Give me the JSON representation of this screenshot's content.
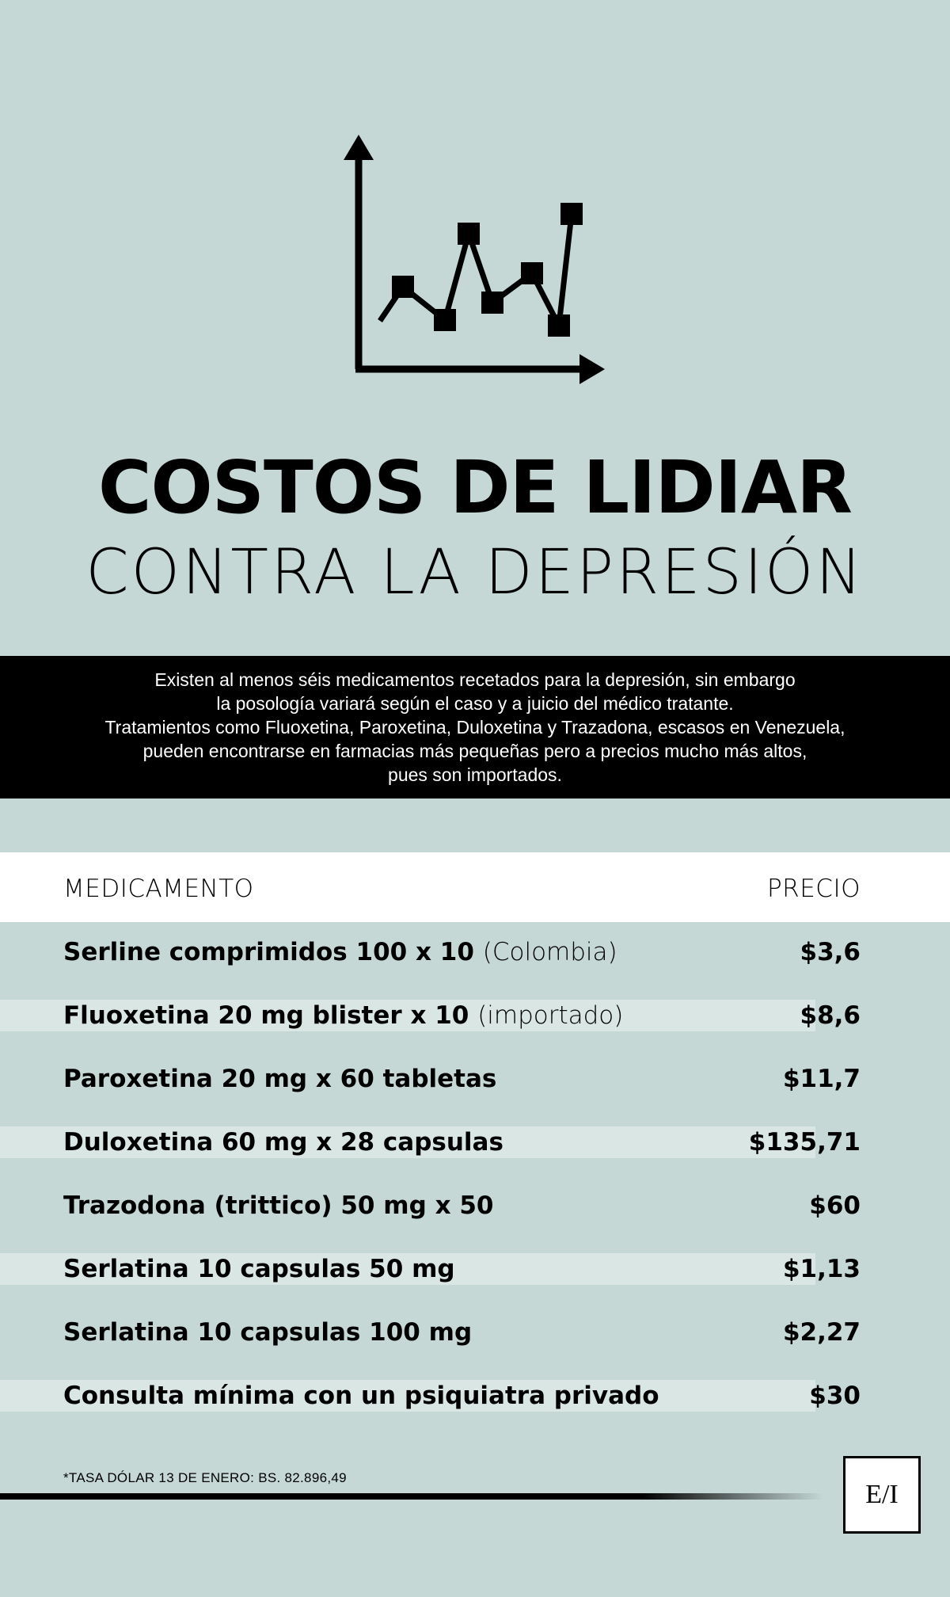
{
  "title": {
    "main": "COSTOS DE LIDIAR",
    "sub": "CONTRA LA DEPRESIÓN"
  },
  "intro": {
    "lines": [
      "Existen al menos séis medicamentos recetados para la depresión, sin embargo",
      "la posología variará según el caso y a juicio del médico tratante.",
      "Tratamientos como Fluoxetina, Paroxetina, Duloxetina y Trazadona, escasos en Venezuela,",
      "pueden encontrarse en farmacias más pequeñas pero a precios mucho más altos,",
      "pues son importados."
    ]
  },
  "table": {
    "header": {
      "name": "MEDICAMENTO",
      "price": "PRECIO"
    },
    "rows": [
      {
        "name": "Serline comprimidos 100 x 10",
        "note": "(Colombia)",
        "price": "$3,6"
      },
      {
        "name": "Fluoxetina 20 mg blister x 10",
        "note": "(importado)",
        "price": "$8,6"
      },
      {
        "name": "Paroxetina 20 mg x 60 tabletas",
        "note": "",
        "price": "$11,7"
      },
      {
        "name": "Duloxetina 60 mg x 28 capsulas",
        "note": "",
        "price": "$135,71"
      },
      {
        "name": "Trazodona (trittico) 50 mg x 50",
        "note": "",
        "price": "$60"
      },
      {
        "name": "Serlatina 10 capsulas 50 mg",
        "note": "",
        "price": "$1,13"
      },
      {
        "name": "Serlatina 10 capsulas 100 mg",
        "note": "",
        "price": "$2,27"
      },
      {
        "name": "Consulta mínima con un psiquiatra privado",
        "note": "",
        "price": "$30"
      }
    ]
  },
  "footnote": "*TASA DÓLAR 13 DE ENERO: BS. 82.896,49",
  "logo": "E/I",
  "icon": "line-chart-icon",
  "colors": {
    "background": "#c5d8d5",
    "stripe": "#d9e6e4",
    "band": "#000000"
  }
}
